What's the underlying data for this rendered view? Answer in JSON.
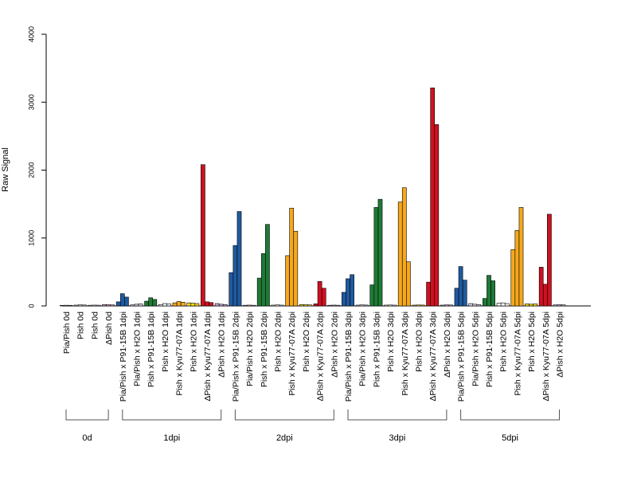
{
  "chart_data": {
    "type": "bar",
    "title": "",
    "xlabel": "",
    "ylabel": "Raw Signal",
    "ylim": [
      0,
      4000
    ],
    "yticks": [
      "0",
      "1000",
      "2000",
      "3000",
      "4000"
    ],
    "grid": false,
    "legend": "none",
    "colors": {
      "pia_pish": "#d9d9d9",
      "pia_pish_h2o": "#d8d0e0",
      "pish_h2o": "#f4f4f4",
      "p91": "#1f5aa0",
      "p91_treated": "#1f7a36",
      "kyu77": "#f5a81c",
      "kyu77_treated": "#d01020",
      "kyu77_treated_0d": "#d8a0c8",
      "dpish_h2o": "#c8a8d8"
    },
    "categories": [
      {
        "label": "Pia/Pish 0d",
        "values": [
          8,
          10,
          9
        ],
        "color": "#d9d9d9"
      },
      {
        "label": "Pish 0d",
        "values": [
          12,
          15,
          14
        ],
        "color": "#d8d0e0"
      },
      {
        "label": "Pish 0d",
        "values": [
          10,
          12,
          11
        ],
        "color": "#f4f4f4"
      },
      {
        "label": "ΔPish 0d",
        "values": [
          20,
          18,
          15
        ],
        "color": "#d8a0c8"
      },
      {
        "label": "Pia/Pish x P91-15B 1dpi",
        "values": [
          60,
          180,
          130
        ],
        "color": "#1f5aa0"
      },
      {
        "label": "Pia/Pish x H2O 1dpi",
        "values": [
          15,
          25,
          30
        ],
        "color": "#d8d0e0"
      },
      {
        "label": "Pish x P91-15B 1dpi",
        "values": [
          70,
          120,
          95
        ],
        "color": "#1f7a36"
      },
      {
        "label": "Pish x H2O 1dpi",
        "values": [
          20,
          35,
          30
        ],
        "color": "#f4f4f4"
      },
      {
        "label": "Pish x Kyu77-07A 1dpi",
        "values": [
          45,
          65,
          55
        ],
        "color": "#f5a81c"
      },
      {
        "label": "Pish x H2O 1dpi",
        "values": [
          45,
          40,
          35
        ],
        "color": "#f5d818"
      },
      {
        "label": "ΔPish x Kyu77-07A 1dpi",
        "values": [
          2080,
          60,
          50
        ],
        "color": "#d01020"
      },
      {
        "label": "ΔPish x H2O 1dpi",
        "values": [
          35,
          25,
          20
        ],
        "color": "#c8a8d8"
      },
      {
        "label": "Pia/Pish x P91-15B 2dpi",
        "values": [
          490,
          890,
          1390
        ],
        "color": "#1f5aa0"
      },
      {
        "label": "Pia/Pish x H2O 2dpi",
        "values": [
          10,
          12,
          10
        ],
        "color": "#d8d0e0"
      },
      {
        "label": "Pish x P91-15B 2dpi",
        "values": [
          410,
          770,
          1200
        ],
        "color": "#1f7a36"
      },
      {
        "label": "Pish x H2O 2dpi",
        "values": [
          12,
          15,
          12
        ],
        "color": "#f4f4f4"
      },
      {
        "label": "Pish x Kyu77-07A 2dpi",
        "values": [
          740,
          1440,
          1100
        ],
        "color": "#f5a81c"
      },
      {
        "label": "Pish x H2O 2dpi",
        "values": [
          20,
          18,
          15
        ],
        "color": "#f5d818"
      },
      {
        "label": "ΔPish x Kyu77-07A 2dpi",
        "values": [
          30,
          360,
          260
        ],
        "color": "#d01020"
      },
      {
        "label": "ΔPish x H2O 2dpi",
        "values": [
          10,
          12,
          10
        ],
        "color": "#c8a8d8"
      },
      {
        "label": "Pia/Pish x P91-15B 3dpi",
        "values": [
          200,
          400,
          460
        ],
        "color": "#1f5aa0"
      },
      {
        "label": "Pia/Pish x H2O 3dpi",
        "values": [
          12,
          15,
          13
        ],
        "color": "#d8d0e0"
      },
      {
        "label": "Pish x P91-15B 3dpi",
        "values": [
          310,
          1450,
          1570
        ],
        "color": "#1f7a36"
      },
      {
        "label": "Pish x H2O 3dpi",
        "values": [
          12,
          14,
          12
        ],
        "color": "#f4f4f4"
      },
      {
        "label": "Pish x Kyu77-07A 3dpi",
        "values": [
          1530,
          1740,
          650
        ],
        "color": "#f5a81c"
      },
      {
        "label": "Pish x H2O 3dpi",
        "values": [
          12,
          14,
          13
        ],
        "color": "#f5d818"
      },
      {
        "label": "ΔPish x Kyu77-07A 3dpi",
        "values": [
          350,
          3210,
          2670
        ],
        "color": "#d01020"
      },
      {
        "label": "ΔPish x H2O 3dpi",
        "values": [
          12,
          15,
          14
        ],
        "color": "#c8a8d8"
      },
      {
        "label": "Pia/Pish x P91-15B 5dpi",
        "values": [
          260,
          580,
          380
        ],
        "color": "#1f5aa0"
      },
      {
        "label": "Pia/Pish x H2O 5dpi",
        "values": [
          35,
          25,
          20
        ],
        "color": "#d8d0e0"
      },
      {
        "label": "Pish x P91-15B 5dpi",
        "values": [
          110,
          450,
          370
        ],
        "color": "#1f7a36"
      },
      {
        "label": "Pish x H2O 5dpi",
        "values": [
          40,
          45,
          35
        ],
        "color": "#f4f4f4"
      },
      {
        "label": "Pish x Kyu77-07A 5dpi",
        "values": [
          830,
          1110,
          1450
        ],
        "color": "#f5a81c"
      },
      {
        "label": "Pish x H2O 5dpi",
        "values": [
          30,
          25,
          30
        ],
        "color": "#f5d818"
      },
      {
        "label": "ΔPish x Kyu77-07A 5dpi",
        "values": [
          570,
          320,
          1350
        ],
        "color": "#d01020"
      },
      {
        "label": "ΔPish x H2O 5dpi",
        "values": [
          15,
          18,
          15
        ],
        "color": "#c8a8d8"
      }
    ],
    "groups": [
      {
        "label": "0d",
        "from": 0,
        "to": 3
      },
      {
        "label": "1dpi",
        "from": 4,
        "to": 11
      },
      {
        "label": "2dpi",
        "from": 12,
        "to": 19
      },
      {
        "label": "3dpi",
        "from": 20,
        "to": 27
      },
      {
        "label": "5dpi",
        "from": 28,
        "to": 35
      }
    ]
  }
}
